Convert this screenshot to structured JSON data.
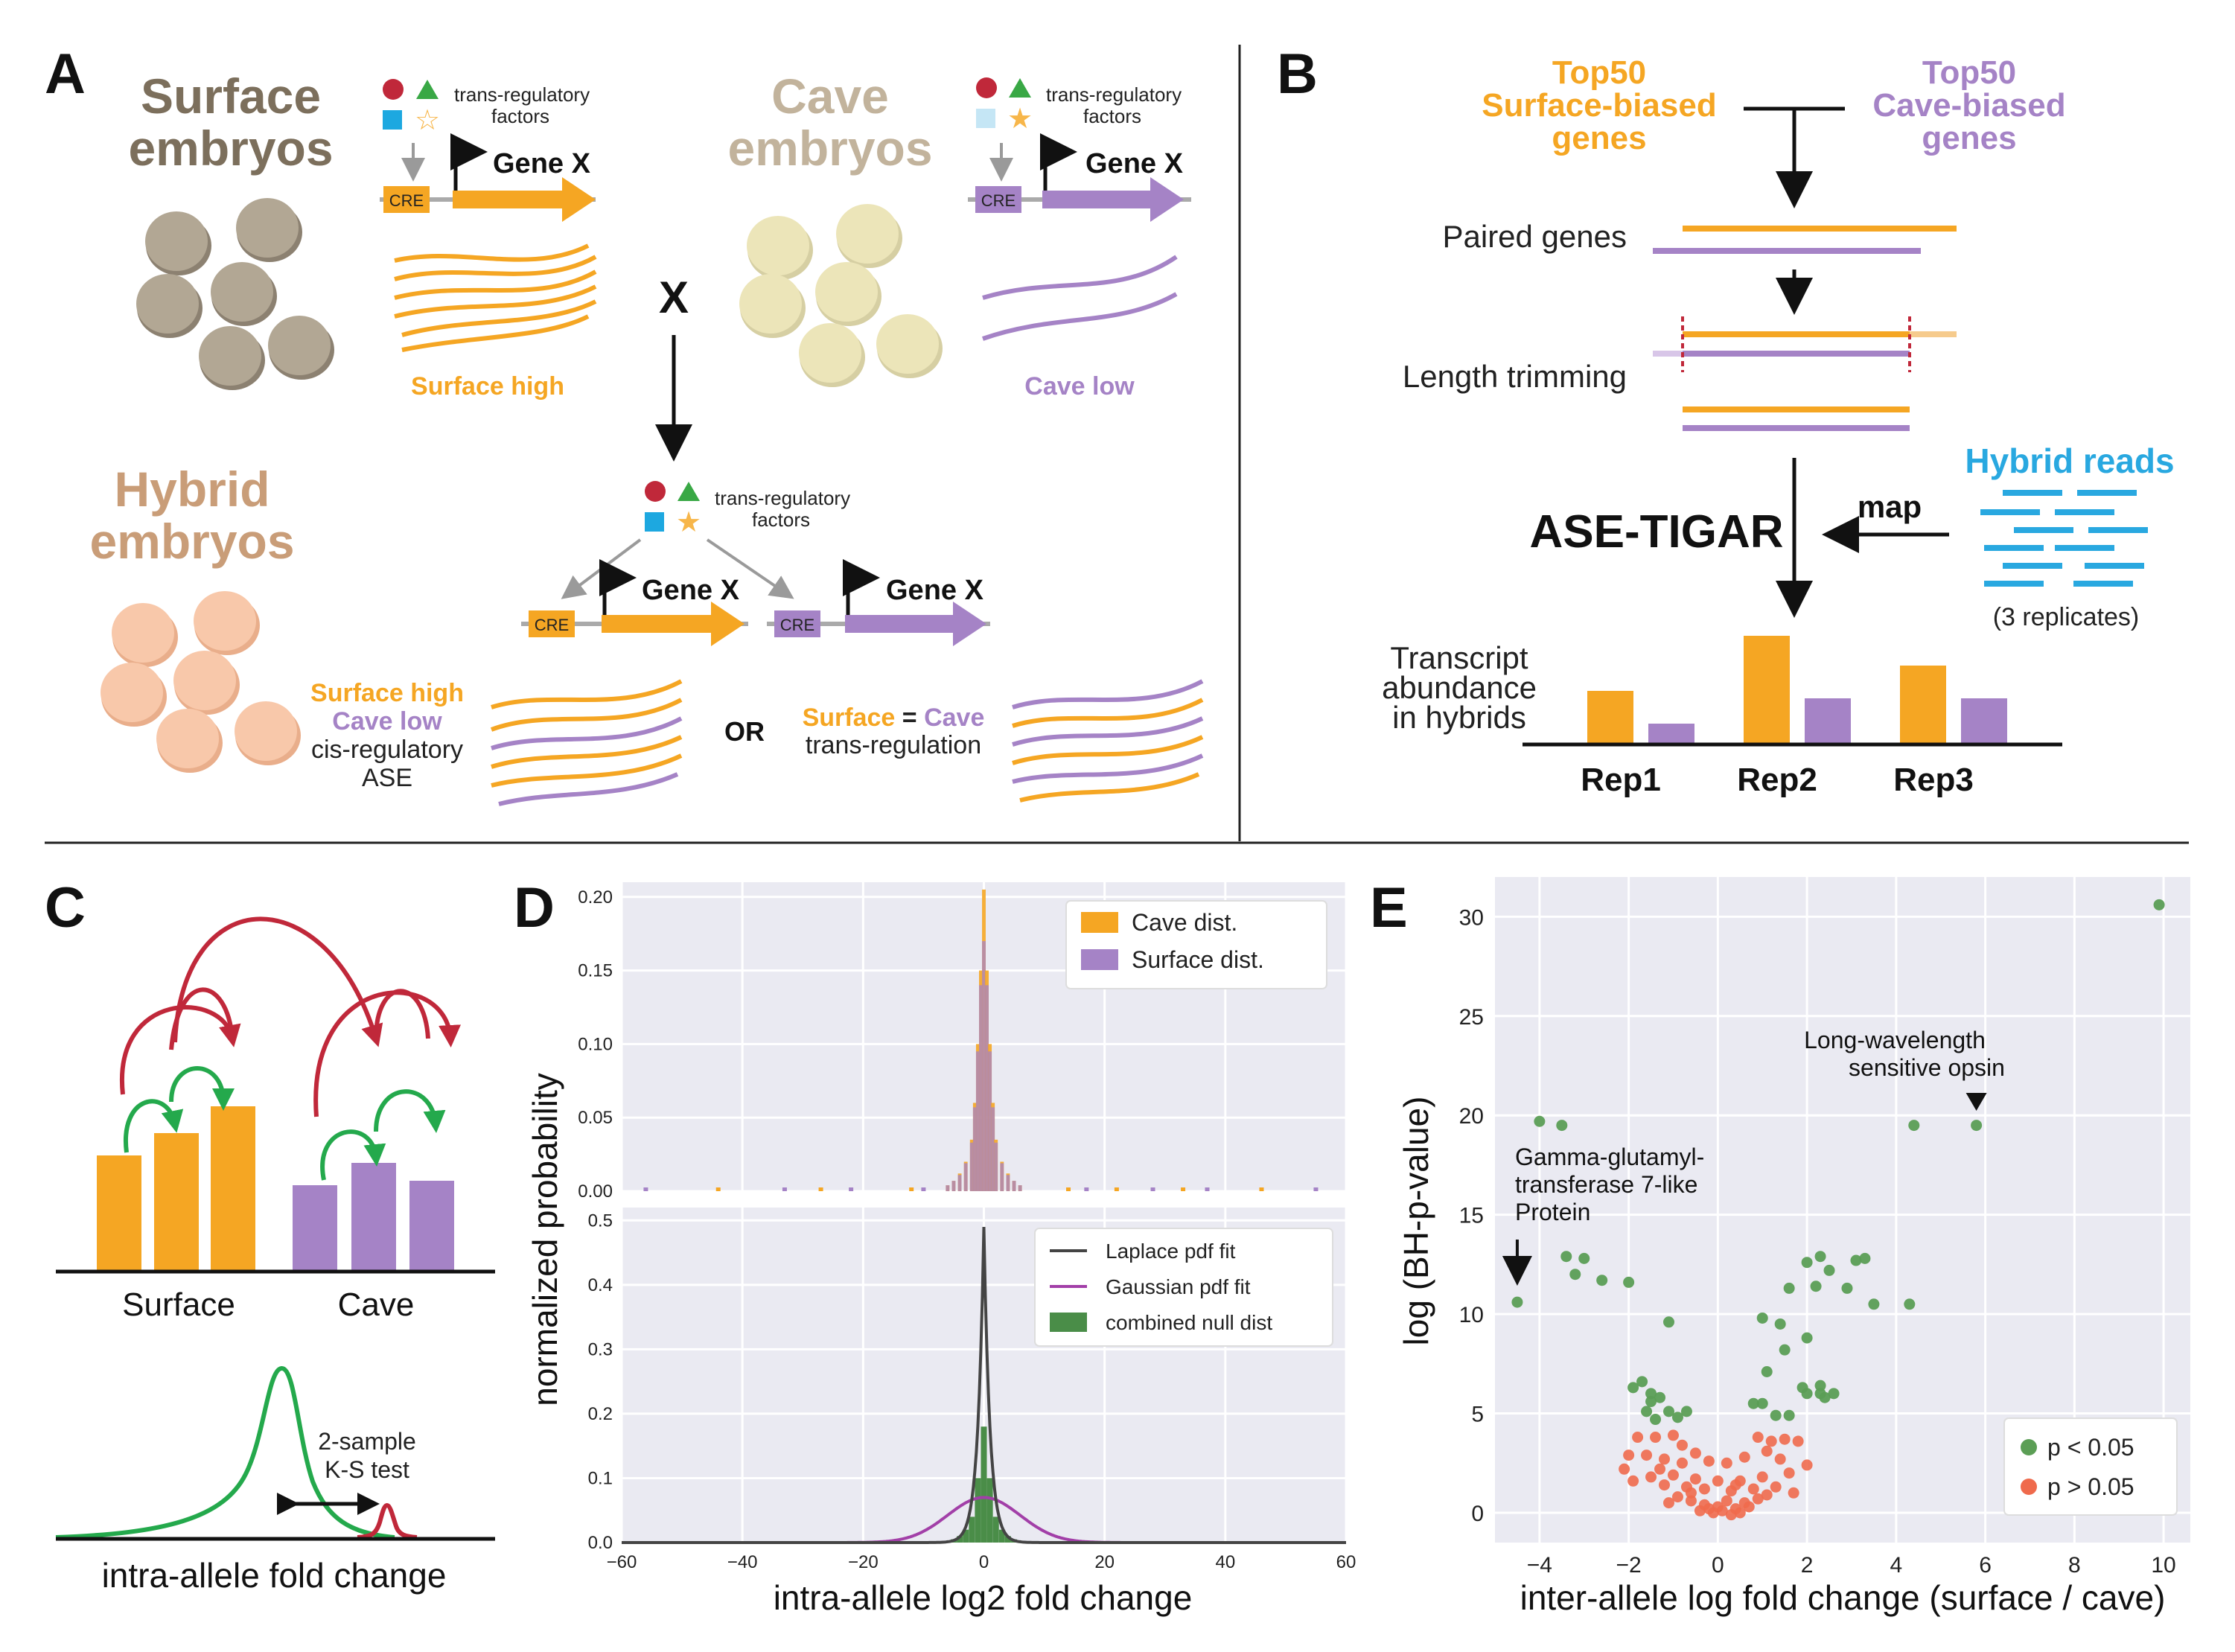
{
  "colors": {
    "orange": "#F5A623",
    "purple": "#A583C6",
    "surface_brown": "#7C6F5C",
    "cave_tan": "#C2B39C",
    "hybrid_tan": "#C99D78",
    "surface_egg": "#B2A794",
    "cave_egg": "#ECE5B9",
    "hybrid_egg": "#F8C8AA",
    "red_factor": "#C0283A",
    "green_factor": "#39A845",
    "blue_factor": "#1DA8E0",
    "star": "#F7B64A",
    "hybrid_blue": "#29A8E0",
    "red_arrow": "#C0283A",
    "green_arrow": "#24A94C",
    "plot_bg": "#EAEAF2",
    "green_dot": "#5B9E55",
    "red_dot": "#EF6A4C",
    "null_green": "#4A8D48",
    "laplace": "#444444",
    "gaussian": "#A23FA8"
  },
  "panel_a": {
    "label": "A",
    "surface_title": [
      "Surface",
      "embryos"
    ],
    "cave_title": [
      "Cave",
      "embryos"
    ],
    "hybrid_title": [
      "Hybrid",
      "embryos"
    ],
    "trans_label": [
      "trans-regulatory",
      "factors"
    ],
    "gene_label": "Gene X",
    "cre_label": "CRE",
    "surface_high": "Surface high",
    "cave_low": "Cave low",
    "cross": "X",
    "outcome1": [
      "Surface high",
      "Cave low",
      "cis-regulatory",
      "ASE"
    ],
    "or_label": "OR",
    "outcome2_surface": "Surface",
    "outcome2_eq": " = ",
    "outcome2_cave": "Cave",
    "outcome2_line2": "trans-regulation"
  },
  "panel_b": {
    "label": "B",
    "top_surface": [
      "Top50",
      "Surface-biased",
      "genes"
    ],
    "top_cave": [
      "Top50",
      "Cave-biased",
      "genes"
    ],
    "paired_genes": "Paired genes",
    "length_trimming": "Length trimming",
    "ase_tigar": "ASE-TIGAR",
    "map": "map",
    "hybrid_reads": "Hybrid reads",
    "replicates": "(3 replicates)",
    "transcript_label": [
      "Transcript",
      "abundance",
      "in hybrids"
    ],
    "reps": [
      "Rep1",
      "Rep2",
      "Rep3"
    ],
    "surface_abundance": [
      36,
      73,
      53
    ],
    "cave_abundance": [
      14,
      31,
      31
    ]
  },
  "panel_c": {
    "label": "C",
    "surface_label": "Surface",
    "cave_label": "Cave",
    "surface_bars": [
      77,
      92,
      110
    ],
    "cave_bars": [
      57,
      72,
      60
    ],
    "ks_label": [
      "2-sample",
      "K-S test"
    ],
    "xlabel": "intra-allele fold change"
  },
  "chart_data": [
    {
      "panel": "D",
      "type": "histogram",
      "label": "D",
      "ylabel": "normalized probability",
      "xlabel": "intra-allele log2 fold change",
      "xlim": [
        -60,
        60
      ],
      "xticks": [
        "−60",
        "−40",
        "−20",
        "0",
        "20",
        "40",
        "60"
      ],
      "top": {
        "ylim": [
          0,
          0.21
        ],
        "yticks": [
          "0.00",
          "0.05",
          "0.10",
          "0.15",
          "0.20"
        ],
        "legend": [
          "Cave dist.",
          "Surface dist."
        ],
        "legend_position": "top-right",
        "bins_x": [
          -6,
          -5,
          -4,
          -3,
          -2,
          -1.5,
          -1,
          -0.5,
          0,
          0.5,
          1,
          1.5,
          2,
          3,
          4,
          5,
          6
        ],
        "cave_values": [
          0.004,
          0.007,
          0.012,
          0.02,
          0.035,
          0.06,
          0.1,
          0.15,
          0.205,
          0.15,
          0.1,
          0.06,
          0.035,
          0.02,
          0.012,
          0.007,
          0.004
        ],
        "surface_values": [
          0.004,
          0.007,
          0.011,
          0.019,
          0.033,
          0.057,
          0.095,
          0.14,
          0.17,
          0.14,
          0.095,
          0.057,
          0.033,
          0.019,
          0.011,
          0.007,
          0.004
        ]
      },
      "bottom": {
        "ylim": [
          0,
          0.52
        ],
        "yticks": [
          "0.0",
          "0.1",
          "0.2",
          "0.3",
          "0.4",
          "0.5"
        ],
        "legend": [
          "Laplace pdf fit",
          "Gaussian pdf fit",
          "combined null dist"
        ],
        "legend_position": "right",
        "laplace_peak": 0.49,
        "laplace_scale": 1.0,
        "gaussian_peak": 0.07,
        "gaussian_sigma": 6.0,
        "null_bins_x": [
          -5,
          -4,
          -3,
          -2,
          -1,
          0,
          1,
          2,
          3,
          4,
          5
        ],
        "null_values": [
          0.005,
          0.01,
          0.02,
          0.04,
          0.1,
          0.18,
          0.1,
          0.04,
          0.02,
          0.01,
          0.005
        ]
      }
    },
    {
      "panel": "E",
      "type": "scatter",
      "label": "E",
      "xlabel": "inter-allele log fold change (surface / cave)",
      "ylabel": "log (BH-p-value)",
      "xlim": [
        -5,
        10.6
      ],
      "ylim": [
        -1.5,
        32
      ],
      "xticks": [
        "−4",
        "−2",
        "0",
        "2",
        "4",
        "6",
        "8",
        "10"
      ],
      "yticks": [
        "0",
        "5",
        "10",
        "15",
        "20",
        "25",
        "30"
      ],
      "legend": [
        "p < 0.05",
        "p > 0.05"
      ],
      "legend_position": "bottom-right",
      "annotations": {
        "opsin": [
          "Long-wavelength",
          "sensitive opsin"
        ],
        "ggt": [
          "Gamma-glutamyl-",
          "transferase 7-like",
          "Protein"
        ]
      },
      "significant": [
        [
          9.9,
          30.6
        ],
        [
          -4.5,
          10.6
        ],
        [
          -4.0,
          19.7
        ],
        [
          -3.5,
          19.5
        ],
        [
          5.8,
          19.5
        ],
        [
          4.4,
          19.5
        ],
        [
          -3.0,
          12.8
        ],
        [
          -3.2,
          12.0
        ],
        [
          -3.4,
          12.9
        ],
        [
          -2.6,
          11.7
        ],
        [
          -2.0,
          11.6
        ],
        [
          -1.1,
          9.6
        ],
        [
          3.5,
          10.5
        ],
        [
          4.3,
          10.5
        ],
        [
          3.1,
          12.7
        ],
        [
          3.3,
          12.8
        ],
        [
          2.3,
          12.9
        ],
        [
          2.5,
          12.2
        ],
        [
          2.0,
          12.6
        ],
        [
          2.2,
          11.4
        ],
        [
          2.9,
          11.3
        ],
        [
          2.0,
          8.8
        ],
        [
          1.0,
          9.8
        ],
        [
          1.6,
          11.3
        ],
        [
          1.4,
          9.5
        ],
        [
          1.5,
          8.2
        ],
        [
          1.1,
          7.1
        ],
        [
          2.0,
          6.0
        ],
        [
          2.4,
          5.8
        ],
        [
          2.3,
          6.4
        ],
        [
          2.6,
          6.0
        ],
        [
          2.3,
          6.0
        ],
        [
          1.9,
          6.3
        ],
        [
          1.6,
          4.9
        ],
        [
          1.3,
          4.9
        ],
        [
          1.0,
          5.5
        ],
        [
          0.8,
          5.5
        ],
        [
          -1.7,
          6.6
        ],
        [
          -1.9,
          6.3
        ],
        [
          -1.5,
          6.0
        ],
        [
          -1.3,
          5.8
        ],
        [
          -1.1,
          5.1
        ],
        [
          -1.6,
          5.1
        ],
        [
          -1.4,
          4.7
        ],
        [
          -1.5,
          5.6
        ],
        [
          -0.7,
          5.1
        ],
        [
          -0.9,
          4.8
        ]
      ],
      "nonsignificant": [
        [
          -1.8,
          3.8
        ],
        [
          -1.4,
          3.8
        ],
        [
          -1.0,
          3.9
        ],
        [
          -0.8,
          3.4
        ],
        [
          -1.6,
          2.9
        ],
        [
          -1.2,
          2.7
        ],
        [
          -0.8,
          2.5
        ],
        [
          -0.5,
          3.0
        ],
        [
          -0.2,
          2.6
        ],
        [
          0.2,
          2.5
        ],
        [
          0.6,
          2.8
        ],
        [
          1.1,
          3.1
        ],
        [
          1.5,
          3.7
        ],
        [
          1.8,
          3.6
        ],
        [
          1.2,
          3.6
        ],
        [
          0.9,
          3.8
        ],
        [
          -2.1,
          2.2
        ],
        [
          -1.9,
          1.6
        ],
        [
          -1.5,
          1.8
        ],
        [
          -1.2,
          1.4
        ],
        [
          -1.0,
          1.9
        ],
        [
          -0.7,
          1.3
        ],
        [
          -0.5,
          1.7
        ],
        [
          -0.3,
          1.2
        ],
        [
          0.0,
          1.6
        ],
        [
          0.3,
          1.1
        ],
        [
          0.5,
          1.6
        ],
        [
          0.8,
          1.2
        ],
        [
          1.0,
          1.8
        ],
        [
          1.3,
          1.3
        ],
        [
          1.6,
          2.0
        ],
        [
          1.7,
          1.0
        ],
        [
          -0.9,
          0.8
        ],
        [
          -0.6,
          0.6
        ],
        [
          -0.3,
          0.4
        ],
        [
          0.0,
          0.3
        ],
        [
          0.2,
          0.6
        ],
        [
          0.4,
          0.2
        ],
        [
          0.6,
          0.5
        ],
        [
          -0.1,
          0.0
        ],
        [
          0.1,
          0.1
        ],
        [
          -0.4,
          0.1
        ],
        [
          0.3,
          -0.1
        ],
        [
          0.5,
          0.0
        ],
        [
          -0.2,
          0.2
        ],
        [
          0.7,
          0.3
        ],
        [
          -0.6,
          1.0
        ],
        [
          0.9,
          0.7
        ],
        [
          -1.1,
          0.5
        ],
        [
          1.1,
          0.9
        ],
        [
          -2.0,
          2.9
        ],
        [
          2.0,
          2.4
        ],
        [
          -1.3,
          2.2
        ],
        [
          1.4,
          2.7
        ],
        [
          0.4,
          1.4
        ]
      ]
    }
  ]
}
